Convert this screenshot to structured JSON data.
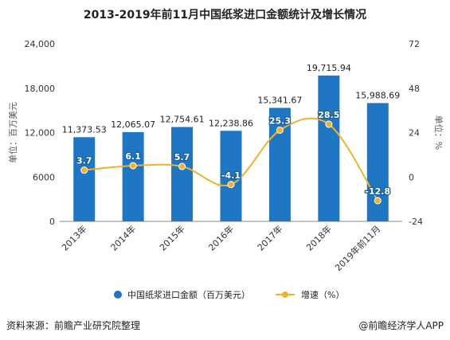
{
  "title": "2013-2019年前11月中国纸浆进口金额统计及增长情况",
  "source": "资料来源：前瞻产业研究院整理",
  "brand": "@前瞻经济学人APP",
  "chart_data": {
    "type": "bar",
    "categories": [
      "2013年",
      "2014年",
      "2015年",
      "2016年",
      "2017年",
      "2018年",
      "2019年前11月"
    ],
    "series": [
      {
        "name": "中国纸浆进口金额（百万美元）",
        "type": "bar",
        "axis": "left",
        "values": [
          11373.53,
          12065.07,
          12754.61,
          12238.86,
          15341.67,
          19715.94,
          15988.69
        ],
        "labels": [
          "11,373.53",
          "12,065.07",
          "12,754.61",
          "12,238.86",
          "15,341.67",
          "19,715.94",
          "15,988.69"
        ],
        "color": "#1f77c4"
      },
      {
        "name": "增速（%）",
        "type": "line",
        "axis": "right",
        "values": [
          3.7,
          6.1,
          5.7,
          -4.1,
          25.3,
          28.5,
          -12.8
        ],
        "labels": [
          "3.7",
          "6.1",
          "5.7",
          "-4.1",
          "25.3",
          "28.5",
          "-12.8"
        ],
        "color": "#f0b12d"
      }
    ],
    "ylabel": "单位：百万美元",
    "y2label": "单位：%",
    "ylim": [
      0,
      24000
    ],
    "y2lim": [
      -24,
      72
    ],
    "yticks": [
      "0",
      "6000",
      "12,000",
      "18,000",
      "24,000"
    ],
    "y2ticks": [
      "-24",
      "0",
      "24",
      "48",
      "72"
    ],
    "grid": false,
    "legend": "bottom"
  }
}
